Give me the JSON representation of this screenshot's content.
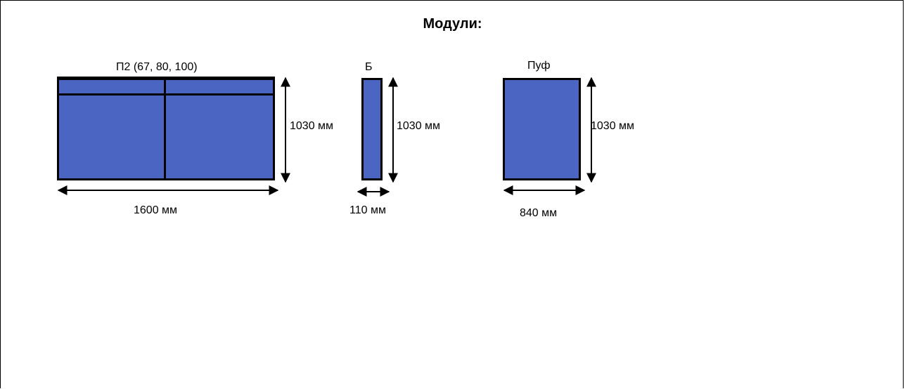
{
  "title": "Модули:",
  "colors": {
    "module_fill": "#4A66C2",
    "outline": "#000000"
  },
  "modules": [
    {
      "name": "П2 (67, 80, 100)",
      "height_label": "1030 мм",
      "width_label": "1600 мм"
    },
    {
      "name": "Б",
      "height_label": "1030 мм",
      "width_label": "110 мм"
    },
    {
      "name": "Пуф",
      "height_label": "1030 мм",
      "width_label": "840 мм"
    }
  ]
}
